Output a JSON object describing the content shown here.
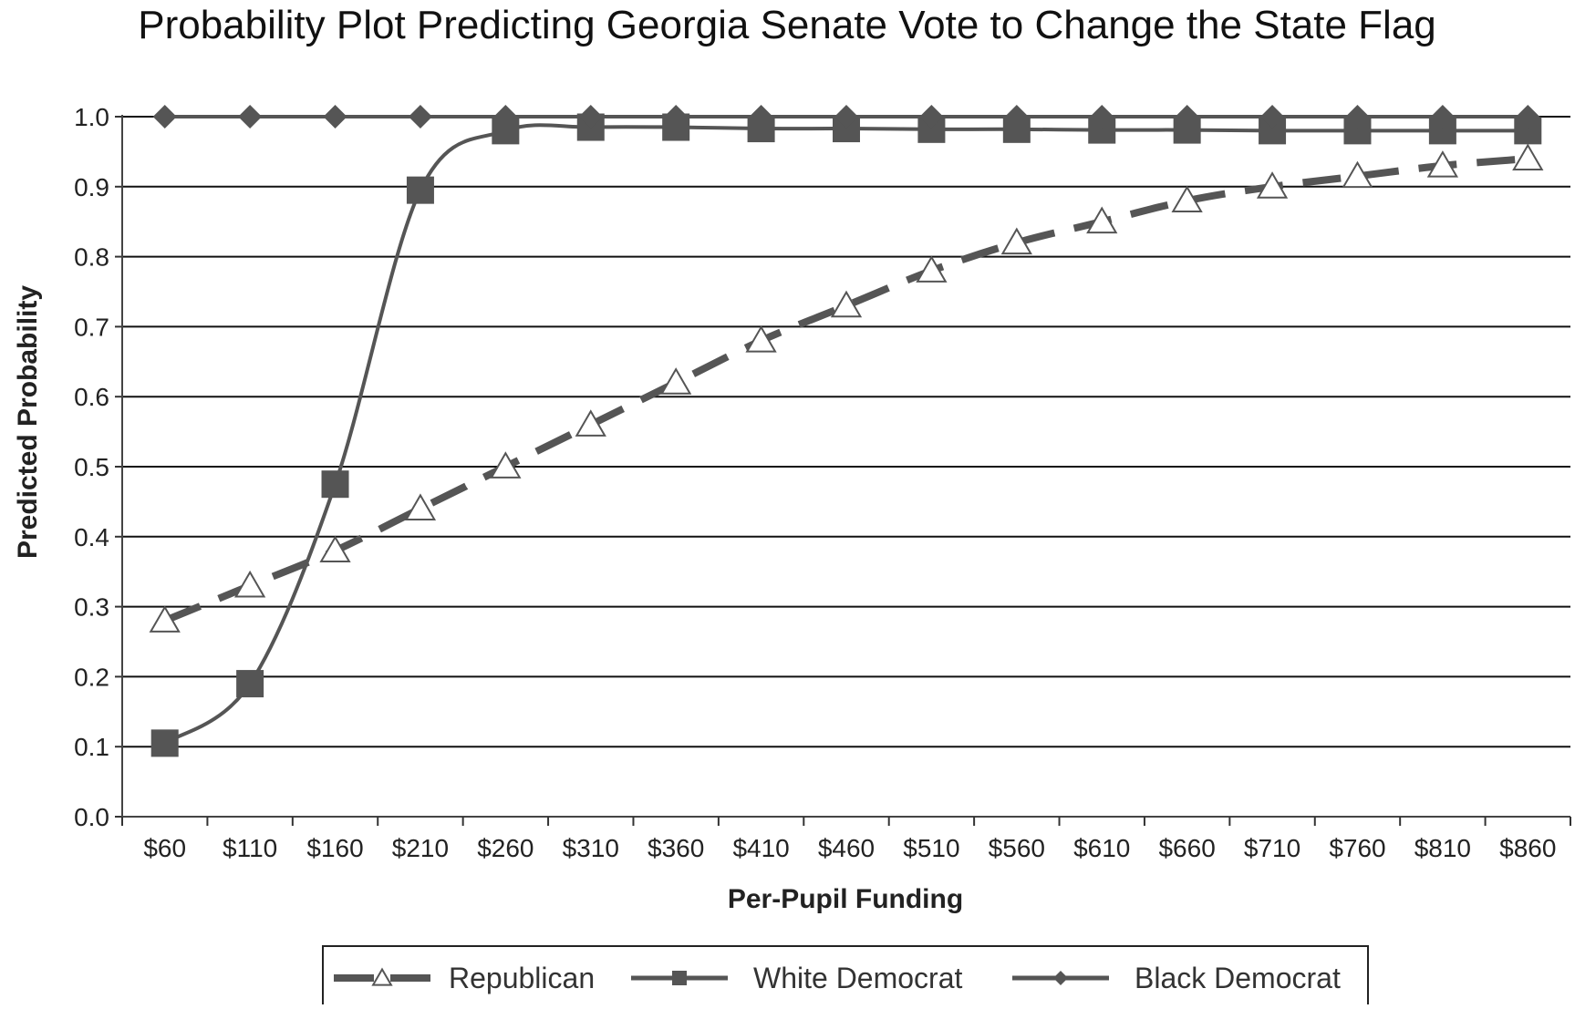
{
  "chart_data": {
    "type": "line",
    "title": "Probability Plot Predicting Georgia Senate Vote to Change the State Flag",
    "xlabel": "Per-Pupil Funding",
    "ylabel": "Predicted Probability",
    "categories": [
      "$60",
      "$110",
      "$160",
      "$210",
      "$260",
      "$310",
      "$360",
      "$410",
      "$460",
      "$510",
      "$560",
      "$610",
      "$660",
      "$710",
      "$760",
      "$810",
      "$860"
    ],
    "ylim": [
      0,
      1
    ],
    "yticks": [
      "0.0",
      "0.1",
      "0.2",
      "0.3",
      "0.4",
      "0.5",
      "0.6",
      "0.7",
      "0.8",
      "0.9",
      "1.0"
    ],
    "grid": true,
    "legend_position": "bottom",
    "series": [
      {
        "name": "Republican",
        "marker": "triangle-open",
        "line_style": "dashed",
        "color": "#555555",
        "values": [
          0.28,
          0.33,
          0.38,
          0.44,
          0.5,
          0.56,
          0.62,
          0.68,
          0.73,
          0.78,
          0.82,
          0.85,
          0.88,
          0.9,
          0.915,
          0.93,
          0.94
        ]
      },
      {
        "name": "White Democrat",
        "marker": "square",
        "line_style": "solid",
        "color": "#555555",
        "values": [
          0.105,
          0.19,
          0.475,
          0.895,
          0.98,
          0.985,
          0.985,
          0.983,
          0.983,
          0.982,
          0.982,
          0.981,
          0.981,
          0.98,
          0.98,
          0.98,
          0.98
        ]
      },
      {
        "name": "Black Democrat",
        "marker": "diamond",
        "line_style": "solid",
        "color": "#555555",
        "values": [
          1.0,
          1.0,
          1.0,
          1.0,
          1.0,
          1.0,
          1.0,
          1.0,
          1.0,
          1.0,
          1.0,
          1.0,
          1.0,
          1.0,
          1.0,
          1.0,
          1.0
        ]
      }
    ]
  }
}
